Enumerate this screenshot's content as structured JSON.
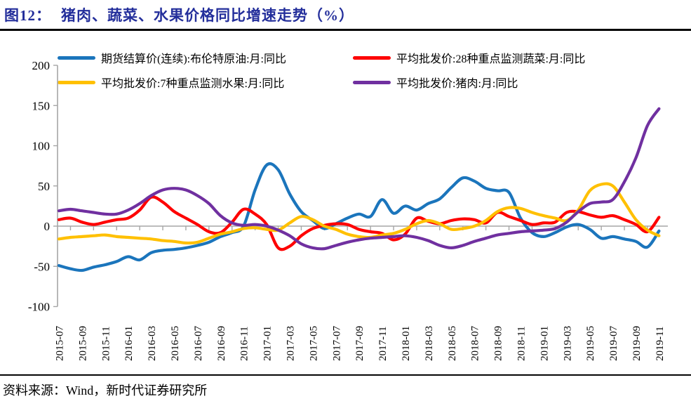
{
  "figure": {
    "label": "图12：",
    "title": "猪肉、蔬菜、水果价格同比增速走势（%）"
  },
  "source": {
    "text": "资料来源：Wind，新时代证券研究所"
  },
  "colors": {
    "title": "#232E9B",
    "rule": "#050505",
    "axis": "#A6A6A6",
    "brent_blue": "#1B75BC",
    "vegetable_red": "#FE0000",
    "fruit_yellow": "#FFC000",
    "pork_purple": "#7030A0"
  },
  "chart_data": {
    "type": "line",
    "title": "猪肉、蔬菜、水果价格同比增速走势（%）",
    "legend_position": "top",
    "grid": "zero-line-only",
    "ylim": [
      -100,
      200
    ],
    "y_ticks": [
      200,
      150,
      100,
      50,
      0,
      -50,
      -100
    ],
    "x_tick_labels": [
      "2015-07",
      "2015-09",
      "2015-11",
      "2016-01",
      "2016-03",
      "2016-05",
      "2016-07",
      "2016-09",
      "2016-11",
      "2017-01",
      "2017-03",
      "2017-05",
      "2017-07",
      "2017-09",
      "2017-11",
      "2018-01",
      "2018-03",
      "2018-05",
      "2018-07",
      "2018-09",
      "2018-11",
      "2019-01",
      "2019-03",
      "2019-05",
      "2019-07",
      "2019-09",
      "2019-11"
    ],
    "x": [
      "2015-07",
      "2015-08",
      "2015-09",
      "2015-10",
      "2015-11",
      "2015-12",
      "2016-01",
      "2016-02",
      "2016-03",
      "2016-04",
      "2016-05",
      "2016-06",
      "2016-07",
      "2016-08",
      "2016-09",
      "2016-10",
      "2016-11",
      "2016-12",
      "2017-01",
      "2017-02",
      "2017-03",
      "2017-04",
      "2017-05",
      "2017-06",
      "2017-07",
      "2017-08",
      "2017-09",
      "2017-10",
      "2017-11",
      "2017-12",
      "2018-01",
      "2018-02",
      "2018-03",
      "2018-04",
      "2018-05",
      "2018-06",
      "2018-07",
      "2018-08",
      "2018-09",
      "2018-10",
      "2018-11",
      "2018-12",
      "2019-01",
      "2019-02",
      "2019-03",
      "2019-04",
      "2019-05",
      "2019-06",
      "2019-07",
      "2019-08",
      "2019-09",
      "2019-10",
      "2019-11"
    ],
    "series": [
      {
        "name": "期货结算价(连续):布伦特原油:月:同比",
        "color": "#1B75BC",
        "values": [
          -49,
          -53,
          -55,
          -51,
          -48,
          -44,
          -38,
          -42,
          -33,
          -30,
          -29,
          -27,
          -24,
          -20,
          -13,
          -8,
          0,
          45,
          76,
          70,
          40,
          18,
          7,
          -3,
          3,
          10,
          15,
          12,
          33,
          16,
          25,
          20,
          28,
          34,
          48,
          60,
          56,
          47,
          44,
          42,
          10,
          -8,
          -13,
          -8,
          -1,
          2,
          -4,
          -15,
          -13,
          -16,
          -19,
          -26,
          -6
        ]
      },
      {
        "name": "平均批发价:28种重点监测蔬菜:月:同比",
        "color": "#FE0000",
        "values": [
          8,
          10,
          5,
          2,
          5,
          8,
          10,
          20,
          36,
          30,
          18,
          10,
          2,
          -7,
          -8,
          5,
          21,
          15,
          2,
          -27,
          -25,
          -12,
          -3,
          1,
          3,
          2,
          -4,
          -7,
          -9,
          -17,
          -10,
          10,
          6,
          3,
          7,
          9,
          8,
          4,
          17,
          12,
          7,
          2,
          4,
          5,
          17,
          18,
          14,
          11,
          13,
          8,
          2,
          -7,
          11
        ]
      },
      {
        "name": "平均批发价:7种重点监测水果:月:同比",
        "color": "#FFC000",
        "values": [
          -16,
          -14,
          -13,
          -12,
          -11,
          -13,
          -14,
          -15,
          -16,
          -18,
          -19,
          -21,
          -20,
          -15,
          -10,
          -7,
          -3,
          -2,
          -4,
          -5,
          4,
          12,
          8,
          0,
          -4,
          -10,
          -13,
          -14,
          -11,
          -9,
          -4,
          3,
          7,
          3,
          -4,
          -3,
          0,
          7,
          18,
          23,
          22,
          17,
          13,
          10,
          7,
          20,
          44,
          52,
          50,
          30,
          8,
          -5,
          -12
        ]
      },
      {
        "name": "平均批发价:猪肉:月:同比",
        "color": "#7030A0",
        "values": [
          19,
          21,
          19,
          17,
          15,
          15,
          20,
          28,
          38,
          45,
          47,
          45,
          38,
          28,
          13,
          4,
          1,
          2,
          0,
          -5,
          -12,
          -22,
          -27,
          -28,
          -24,
          -20,
          -17,
          -15,
          -14,
          -13,
          -12,
          -14,
          -18,
          -24,
          -27,
          -24,
          -19,
          -15,
          -11,
          -9,
          -7,
          -6,
          -5,
          -3,
          5,
          18,
          28,
          30,
          33,
          55,
          85,
          125,
          146
        ]
      }
    ]
  }
}
